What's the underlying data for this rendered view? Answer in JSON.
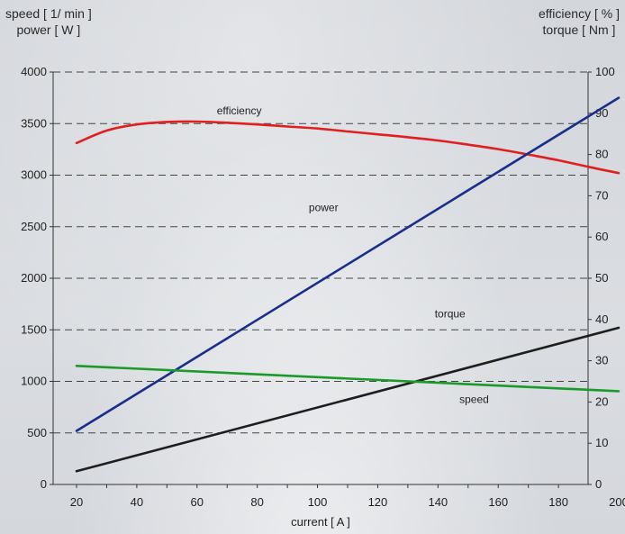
{
  "chart_data": {
    "type": "line",
    "xlabel": "current [ A ]",
    "ylabel_left": [
      "speed [ 1/ min ]",
      "power [ W ]"
    ],
    "ylabel_right": [
      "efficiency [ % ]",
      "torque [ Nm ]"
    ],
    "xlim": [
      10,
      205
    ],
    "ylim_left": [
      0,
      4000
    ],
    "ylim_right": [
      0,
      100
    ],
    "x_ticks": [
      20,
      40,
      60,
      80,
      100,
      120,
      140,
      160,
      180,
      200
    ],
    "y_left_ticks": [
      0,
      500,
      1000,
      1500,
      2000,
      2500,
      3000,
      3500,
      4000
    ],
    "y_right_ticks": [
      0,
      10,
      20,
      30,
      40,
      50,
      60,
      70,
      80,
      90,
      100
    ],
    "grid": "horizontal dashed",
    "series": [
      {
        "name": "efficiency",
        "axis": "right",
        "color": "#e02020",
        "x": [
          20,
          30,
          40,
          50,
          60,
          70,
          80,
          90,
          100,
          110,
          120,
          130,
          140,
          150,
          160,
          170,
          180,
          190,
          200
        ],
        "values": [
          82.8,
          85.8,
          87.3,
          87.9,
          88.0,
          87.7,
          87.3,
          86.8,
          86.3,
          85.6,
          84.9,
          84.2,
          83.4,
          82.4,
          81.3,
          80.0,
          78.6,
          77.0,
          75.5
        ]
      },
      {
        "name": "power",
        "axis": "left",
        "color": "#1a2f8c",
        "x": [
          20,
          200
        ],
        "values": [
          520,
          3750
        ]
      },
      {
        "name": "torque",
        "axis": "right",
        "color": "#1e1e1e",
        "x": [
          20,
          200
        ],
        "values": [
          3.2,
          38
        ]
      },
      {
        "name": "speed",
        "axis": "left",
        "color": "#1a9a2a",
        "x": [
          20,
          200
        ],
        "values": [
          1150,
          905
        ]
      }
    ],
    "annotations": [
      {
        "text": "efficiency",
        "x": 74,
        "yleft": 3590
      },
      {
        "text": "power",
        "x": 102,
        "yleft": 2650
      },
      {
        "text": "torque",
        "x": 144,
        "yleft": 1620
      },
      {
        "text": "speed",
        "x": 152,
        "yleft": 790
      }
    ]
  }
}
